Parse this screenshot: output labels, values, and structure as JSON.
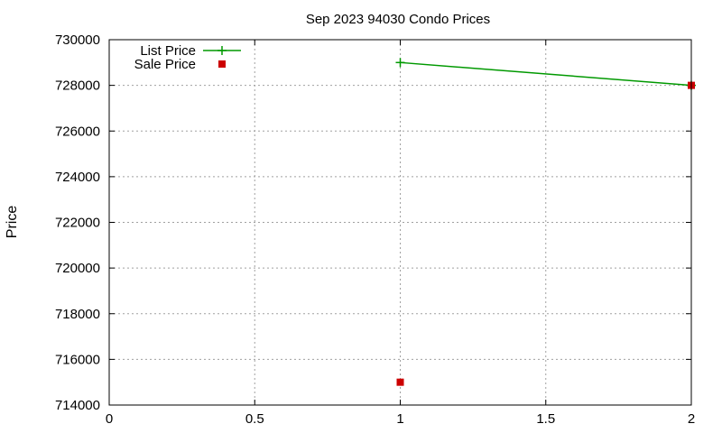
{
  "chart_data": {
    "type": "line",
    "title": "Sep 2023 94030 Condo Prices",
    "ylabel": "Price",
    "xlabel": "",
    "xlim": [
      0,
      2
    ],
    "ylim": [
      714000,
      730000
    ],
    "xticks": [
      0,
      0.5,
      1,
      1.5,
      2
    ],
    "xtick_labels": [
      "0",
      "0.5",
      "1",
      "1.5",
      "2"
    ],
    "yticks": [
      714000,
      716000,
      718000,
      720000,
      722000,
      724000,
      726000,
      728000,
      730000
    ],
    "ytick_labels": [
      "714000",
      "716000",
      "718000",
      "720000",
      "722000",
      "724000",
      "726000",
      "728000",
      "730000"
    ],
    "grid": true,
    "legend_position": "top-left",
    "series": [
      {
        "name": "List Price",
        "style": "linespoints",
        "marker": "plus",
        "color": "#009900",
        "x": [
          1,
          2
        ],
        "y": [
          729000,
          728000
        ]
      },
      {
        "name": "Sale Price",
        "style": "points",
        "marker": "square",
        "color": "#cc0000",
        "x": [
          1,
          2
        ],
        "y": [
          715000,
          728000
        ]
      }
    ]
  }
}
